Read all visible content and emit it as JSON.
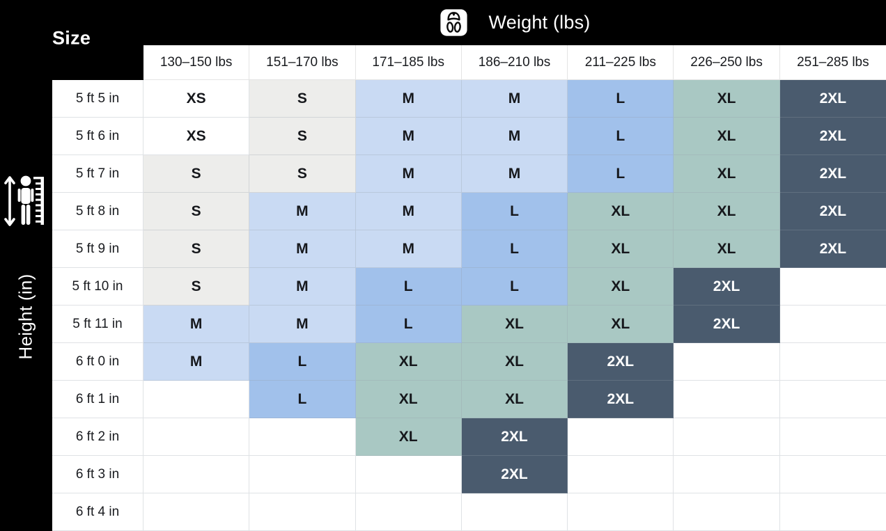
{
  "header": {
    "corner_label": "Size",
    "weight_label": "Weight (lbs)",
    "height_label": "Height (in)"
  },
  "icons": {
    "weight": "scale-icon",
    "height": "person-height-ruler-icon"
  },
  "chart_data": {
    "type": "table",
    "title": "Size chart by height and weight",
    "xlabel": "Weight (lbs)",
    "ylabel": "Height (in)",
    "corner_label": "Size",
    "columns": [
      "130–150 lbs",
      "151–170 lbs",
      "171–185 lbs",
      "186–210 lbs",
      "211–225 lbs",
      "226–250 lbs",
      "251–285 lbs"
    ],
    "rows": [
      {
        "label": "5 ft 5 in",
        "cells": [
          "XS",
          "S",
          "M",
          "M",
          "L",
          "XL",
          "2XL"
        ]
      },
      {
        "label": "5 ft 6 in",
        "cells": [
          "XS",
          "S",
          "M",
          "M",
          "L",
          "XL",
          "2XL"
        ]
      },
      {
        "label": "5 ft 7 in",
        "cells": [
          "S",
          "S",
          "M",
          "M",
          "L",
          "XL",
          "2XL"
        ]
      },
      {
        "label": "5 ft 8 in",
        "cells": [
          "S",
          "M",
          "M",
          "L",
          "XL",
          "XL",
          "2XL"
        ]
      },
      {
        "label": "5 ft 9 in",
        "cells": [
          "S",
          "M",
          "M",
          "L",
          "XL",
          "XL",
          "2XL"
        ]
      },
      {
        "label": "5 ft 10 in",
        "cells": [
          "S",
          "M",
          "L",
          "L",
          "XL",
          "2XL",
          ""
        ]
      },
      {
        "label": "5 ft 11 in",
        "cells": [
          "M",
          "M",
          "L",
          "XL",
          "XL",
          "2XL",
          ""
        ]
      },
      {
        "label": "6 ft 0 in",
        "cells": [
          "M",
          "L",
          "XL",
          "XL",
          "2XL",
          "",
          ""
        ]
      },
      {
        "label": "6 ft 1 in",
        "cells": [
          "",
          "L",
          "XL",
          "XL",
          "2XL",
          "",
          ""
        ]
      },
      {
        "label": "6 ft 2 in",
        "cells": [
          "",
          "",
          "XL",
          "2XL",
          "",
          "",
          ""
        ]
      },
      {
        "label": "6 ft 3 in",
        "cells": [
          "",
          "",
          "",
          "2XL",
          "",
          "",
          ""
        ]
      },
      {
        "label": "6 ft 4 in",
        "cells": [
          "",
          "",
          "",
          "",
          "",
          "",
          ""
        ]
      }
    ],
    "size_colors": {
      "XS": {
        "bg": "#ffffff",
        "text": "#16181c"
      },
      "S": {
        "bg": "#ededeb",
        "text": "#16181c"
      },
      "M": {
        "bg": "#c9daf3",
        "text": "#16181c"
      },
      "L": {
        "bg": "#a1c1eb",
        "text": "#16181c"
      },
      "XL": {
        "bg": "#a9c8c3",
        "text": "#16181c"
      },
      "2XL": {
        "bg": "#4a5b6e",
        "text": "#ffffff"
      },
      "": {
        "bg": "#ffffff",
        "text": "#16181c"
      }
    },
    "legend_position": "none",
    "grid": true
  }
}
